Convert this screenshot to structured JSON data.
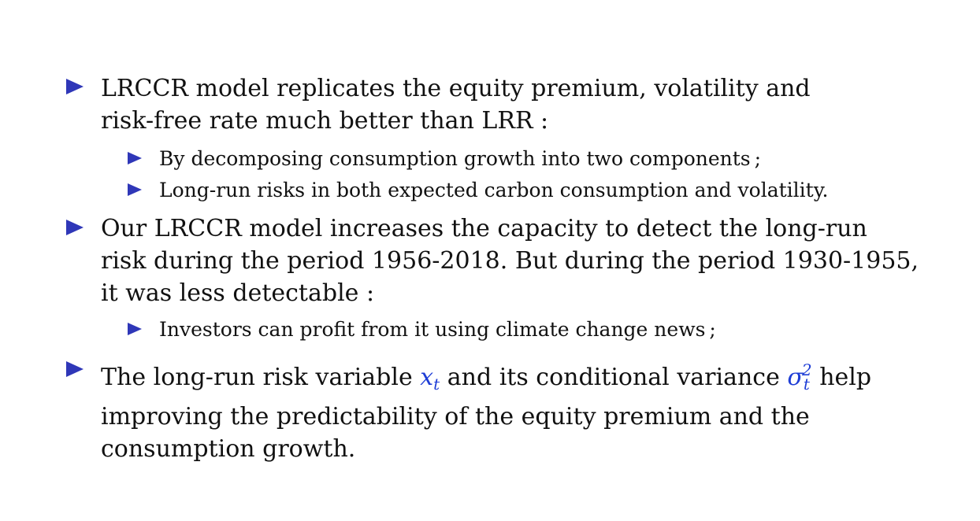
{
  "bullet_color": "#2f37b8",
  "math_color": "#1f3ed6",
  "items": [
    {
      "level": 1,
      "lines": [
        "LRCCR model replicates the equity premium, volatility and",
        "risk-free rate much better than LRR :"
      ]
    },
    {
      "level": 2,
      "lines": [
        "By decomposing consumption growth into two components ;"
      ]
    },
    {
      "level": 2,
      "lines": [
        "Long-run risks in both expected carbon consumption and volatility."
      ]
    },
    {
      "level": 1,
      "lines": [
        "Our LRCCR model increases the capacity to detect the long-run",
        "risk during the period 1956-2018. But during the period 1930-1955,",
        "it was less detectable :"
      ]
    },
    {
      "level": 2,
      "lines": [
        "Investors can profit from it using climate change news ;"
      ]
    },
    {
      "level": 1,
      "line1_part1": "The long-run risk variable ",
      "math1_base": "x",
      "math1_sub": "t",
      "line1_part2": " and its conditional variance ",
      "math2_base": "σ",
      "math2_sup": "2",
      "math2_sub": "t",
      "line1_part3": " help",
      "lines": [
        "improving the predictability of the equity premium and the",
        "consumption growth."
      ]
    }
  ]
}
